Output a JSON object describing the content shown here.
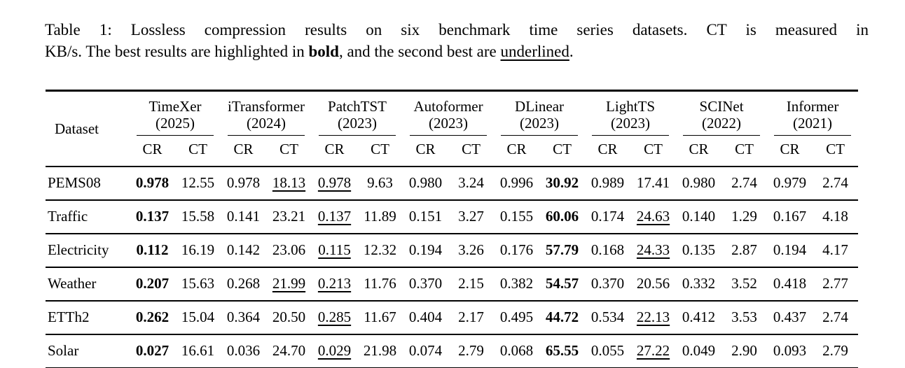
{
  "caption": {
    "line1": "Table 1: Lossless compression results on six benchmark time series datasets. CT is measured in",
    "line2_before_bold": "KB/s. The best results are highlighted in ",
    "bold_word": "bold",
    "line2_after_bold": ", and the second best are ",
    "underlined_word": "underlined",
    "line2_end": "."
  },
  "table": {
    "dataset_header": "Dataset",
    "subheaders": [
      "CR",
      "CT"
    ],
    "methods": [
      {
        "name": "TimeXer",
        "year": "(2025)"
      },
      {
        "name": "iTransformer",
        "year": "(2024)"
      },
      {
        "name": "PatchTST",
        "year": "(2023)"
      },
      {
        "name": "Autoformer",
        "year": "(2023)"
      },
      {
        "name": "DLinear",
        "year": "(2023)"
      },
      {
        "name": "LightTS",
        "year": "(2023)"
      },
      {
        "name": "SCINet",
        "year": "(2022)"
      },
      {
        "name": "Informer",
        "year": "(2021)"
      }
    ],
    "rows": [
      {
        "dataset": "PEMS08",
        "values": [
          "0.978",
          "12.55",
          "0.978",
          "18.13",
          "0.978",
          "9.63",
          "0.980",
          "3.24",
          "0.996",
          "30.92",
          "0.989",
          "17.41",
          "0.980",
          "2.74",
          "0.979",
          "2.74"
        ],
        "styles": [
          "bold",
          "normal",
          "normal",
          "underline",
          "underline",
          "normal",
          "normal",
          "normal",
          "normal",
          "bold",
          "normal",
          "normal",
          "normal",
          "normal",
          "normal",
          "normal"
        ]
      },
      {
        "dataset": "Traffic",
        "values": [
          "0.137",
          "15.58",
          "0.141",
          "23.21",
          "0.137",
          "11.89",
          "0.151",
          "3.27",
          "0.155",
          "60.06",
          "0.174",
          "24.63",
          "0.140",
          "1.29",
          "0.167",
          "4.18"
        ],
        "styles": [
          "bold",
          "normal",
          "normal",
          "normal",
          "underline",
          "normal",
          "normal",
          "normal",
          "normal",
          "bold",
          "normal",
          "underline",
          "normal",
          "normal",
          "normal",
          "normal"
        ]
      },
      {
        "dataset": "Electricity",
        "values": [
          "0.112",
          "16.19",
          "0.142",
          "23.06",
          "0.115",
          "12.32",
          "0.194",
          "3.26",
          "0.176",
          "57.79",
          "0.168",
          "24.33",
          "0.135",
          "2.87",
          "0.194",
          "4.17"
        ],
        "styles": [
          "bold",
          "normal",
          "normal",
          "normal",
          "underline",
          "normal",
          "normal",
          "normal",
          "normal",
          "bold",
          "normal",
          "underline",
          "normal",
          "normal",
          "normal",
          "normal"
        ]
      },
      {
        "dataset": "Weather",
        "values": [
          "0.207",
          "15.63",
          "0.268",
          "21.99",
          "0.213",
          "11.76",
          "0.370",
          "2.15",
          "0.382",
          "54.57",
          "0.370",
          "20.56",
          "0.332",
          "3.52",
          "0.418",
          "2.77"
        ],
        "styles": [
          "bold",
          "normal",
          "normal",
          "underline",
          "underline",
          "normal",
          "normal",
          "normal",
          "normal",
          "bold",
          "normal",
          "normal",
          "normal",
          "normal",
          "normal",
          "normal"
        ]
      },
      {
        "dataset": "ETTh2",
        "values": [
          "0.262",
          "15.04",
          "0.364",
          "20.50",
          "0.285",
          "11.67",
          "0.404",
          "2.17",
          "0.495",
          "44.72",
          "0.534",
          "22.13",
          "0.412",
          "3.53",
          "0.437",
          "2.74"
        ],
        "styles": [
          "bold",
          "normal",
          "normal",
          "normal",
          "underline",
          "normal",
          "normal",
          "normal",
          "normal",
          "bold",
          "normal",
          "underline",
          "normal",
          "normal",
          "normal",
          "normal"
        ]
      },
      {
        "dataset": "Solar",
        "values": [
          "0.027",
          "16.61",
          "0.036",
          "24.70",
          "0.029",
          "21.98",
          "0.074",
          "2.79",
          "0.068",
          "65.55",
          "0.055",
          "27.22",
          "0.049",
          "2.90",
          "0.093",
          "2.79"
        ],
        "styles": [
          "bold",
          "normal",
          "normal",
          "normal",
          "underline",
          "normal",
          "normal",
          "normal",
          "normal",
          "bold",
          "normal",
          "underline",
          "normal",
          "normal",
          "normal",
          "normal"
        ]
      }
    ]
  }
}
